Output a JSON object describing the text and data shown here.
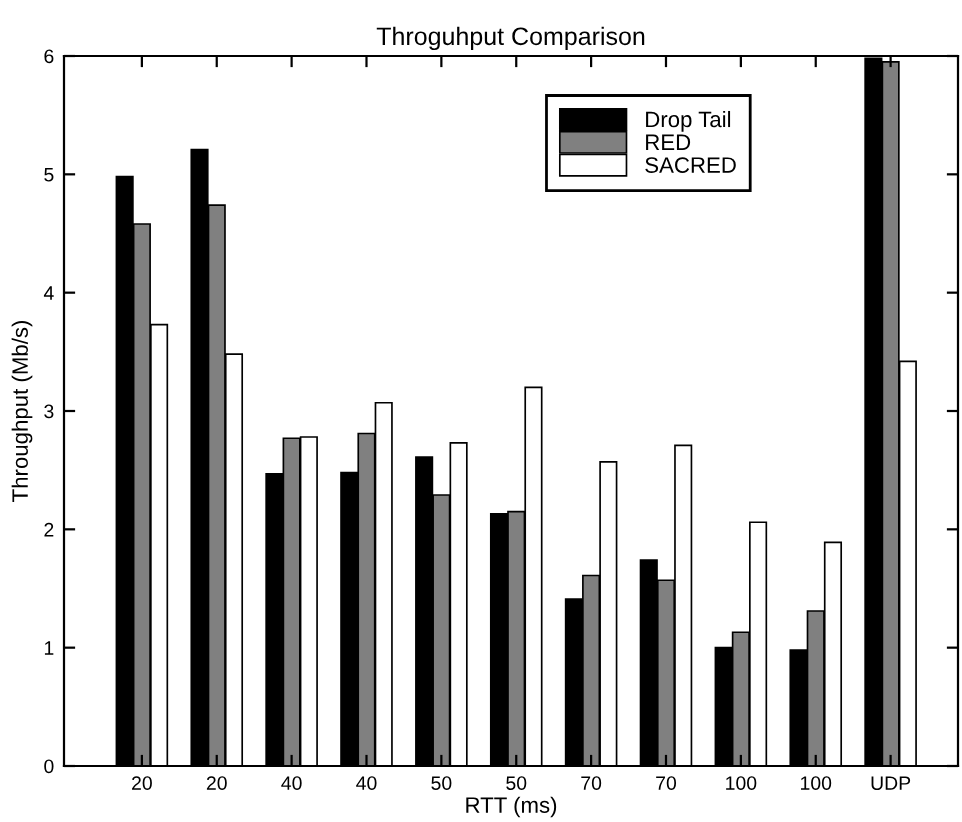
{
  "chart_data": {
    "type": "bar",
    "title": "Throguhput Comparison",
    "xlabel": "RTT (ms)",
    "ylabel": "Throughput (Mb/s)",
    "categories": [
      "20",
      "20",
      "40",
      "40",
      "50",
      "50",
      "70",
      "70",
      "100",
      "100",
      "UDP"
    ],
    "series": [
      {
        "name": "Drop Tail",
        "color": "#000000",
        "values": [
          4.98,
          5.21,
          2.47,
          2.48,
          2.61,
          2.13,
          1.41,
          1.74,
          1.0,
          0.98,
          5.98
        ]
      },
      {
        "name": "RED",
        "color": "#808080",
        "values": [
          4.58,
          4.74,
          2.77,
          2.81,
          2.29,
          2.15,
          1.61,
          1.57,
          1.13,
          1.31,
          5.95
        ]
      },
      {
        "name": "SACRED",
        "color": "#ffffff",
        "values": [
          3.73,
          3.48,
          2.78,
          3.07,
          2.73,
          3.2,
          2.57,
          2.71,
          2.06,
          1.89,
          3.42
        ]
      }
    ],
    "ylim": [
      0,
      6
    ],
    "yticks": [
      0,
      1,
      2,
      3,
      4,
      5,
      6
    ],
    "grid": false,
    "legend": "top right"
  }
}
